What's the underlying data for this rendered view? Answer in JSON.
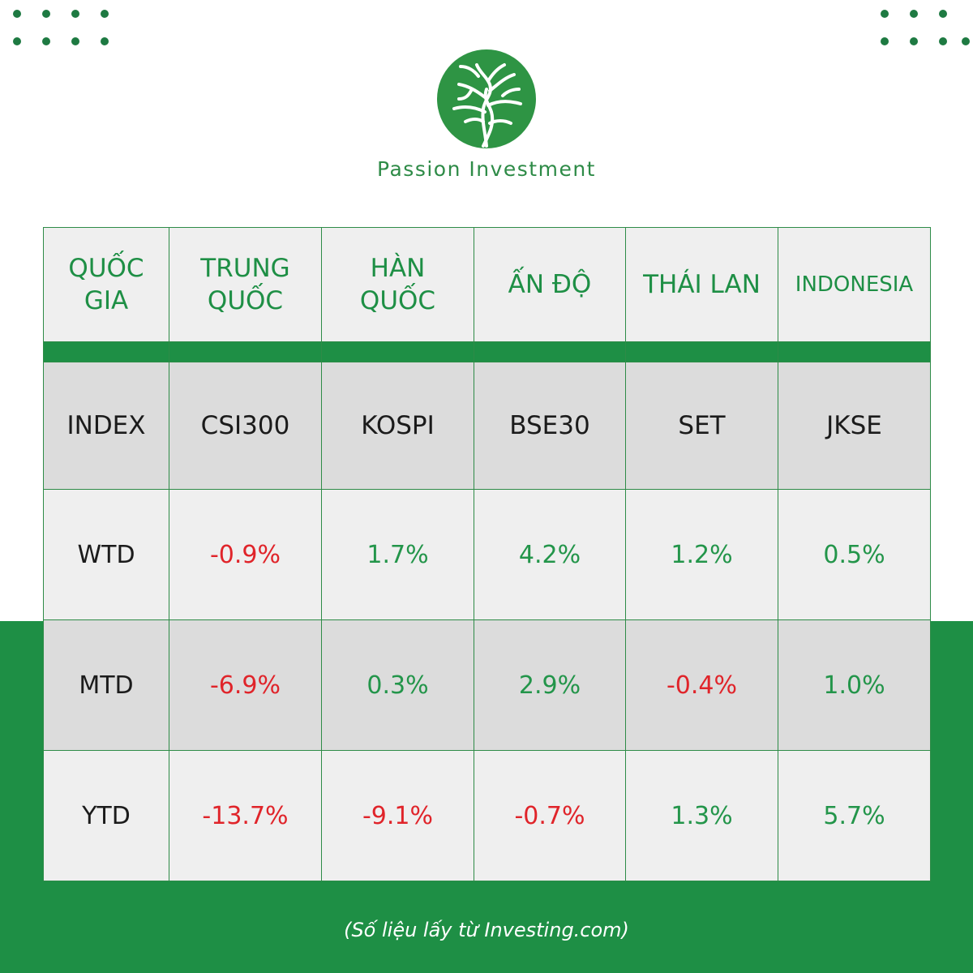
{
  "brand": {
    "name": "Passion Investment",
    "accent": "#1e8f45"
  },
  "table": {
    "header_label": "QUỐC GIA",
    "countries": [
      "TRUNG QUỐC",
      "HÀN QUỐC",
      "ẤN ĐỘ",
      "THÁI LAN",
      "INDONESIA"
    ],
    "index_label": "INDEX",
    "indices": [
      "CSI300",
      "KOSPI",
      "BSE30",
      "SET",
      "JKSE"
    ],
    "rows": [
      {
        "label": "WTD",
        "values": [
          "-0.9%",
          "1.7%",
          "4.2%",
          "1.2%",
          "0.5%"
        ]
      },
      {
        "label": "MTD",
        "values": [
          "-6.9%",
          "0.3%",
          "2.9%",
          "-0.4%",
          "1.0%"
        ]
      },
      {
        "label": "YTD",
        "values": [
          "-13.7%",
          "-9.1%",
          "-0.7%",
          "1.3%",
          "5.7%"
        ]
      }
    ]
  },
  "colors": {
    "positive": "#23954a",
    "negative": "#e0242a",
    "brand_green": "#1e8f45"
  },
  "footer": {
    "source": "(Số liệu lấy từ Investing.com)"
  }
}
